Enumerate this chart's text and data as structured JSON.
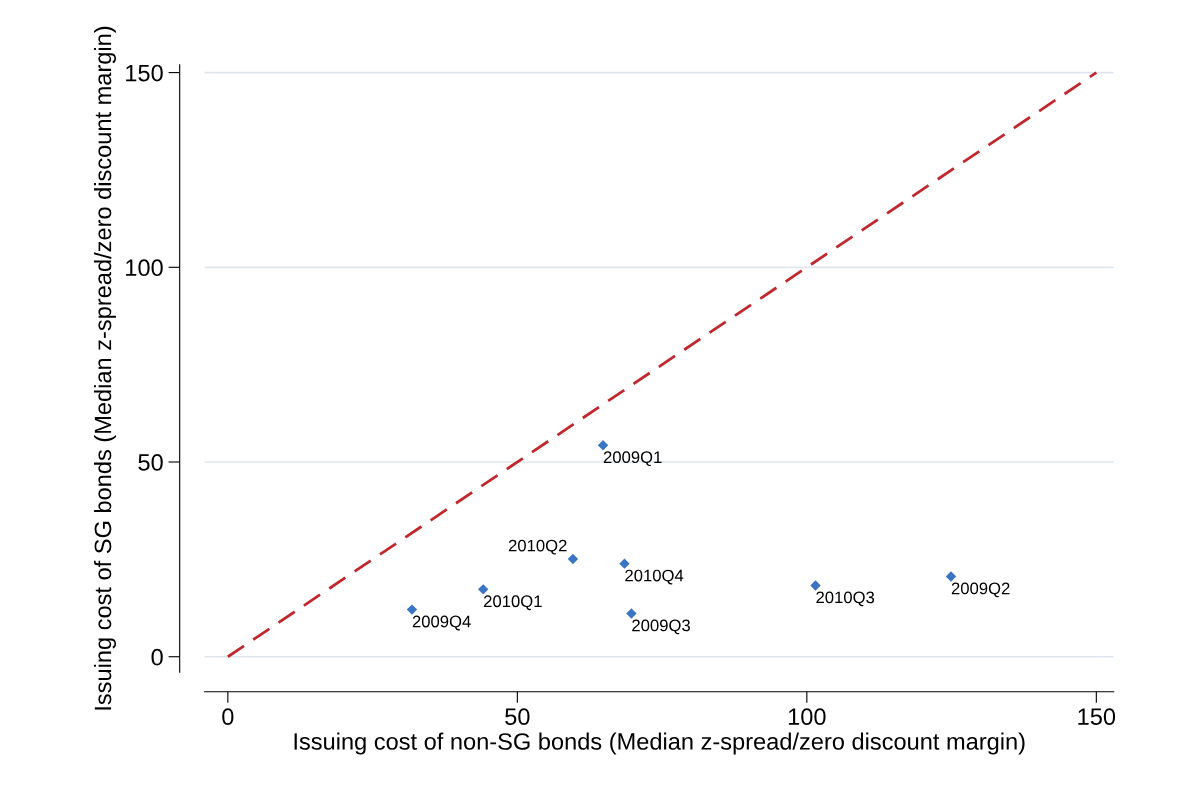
{
  "chart_data": {
    "type": "scatter",
    "xlabel": "Issuing cost of non-SG bonds (Median z-spread/zero discount margin)",
    "ylabel": "Issuing cost of SG bonds (Median z-spread/zero discount margin)",
    "xlim": [
      -4,
      153
    ],
    "ylim": [
      -4,
      152
    ],
    "xticks": [
      0,
      50,
      100,
      150
    ],
    "yticks": [
      0,
      50,
      100,
      150
    ],
    "grid": "y",
    "marker": "diamond",
    "series": [
      {
        "color": "#3a75c4",
        "x": [
          64.8,
          124.9,
          69.7,
          31.8,
          44.1,
          59.6,
          101.5,
          68.5
        ],
        "values": [
          54.3,
          20.6,
          11.1,
          12.1,
          17.3,
          25.1,
          18.3,
          23.9
        ]
      },
      {
        "type": "line",
        "color": "#c0282d",
        "line_style": "dashed",
        "marker": "none",
        "x": [
          0,
          150
        ],
        "values": [
          0,
          150
        ]
      }
    ],
    "annotations": [
      {
        "text": "2009Q1",
        "x": 64.8,
        "y": 54.3
      },
      {
        "text": "2009Q2",
        "x": 124.9,
        "y": 20.6
      },
      {
        "text": "2009Q3",
        "x": 69.7,
        "y": 11.1
      },
      {
        "text": "2009Q4",
        "x": 31.8,
        "y": 12.1
      },
      {
        "text": "2010Q1",
        "x": 44.1,
        "y": 17.3
      },
      {
        "text": "2010Q2",
        "x": 59.6,
        "y": 25.1
      },
      {
        "text": "2010Q3",
        "x": 101.5,
        "y": 18.3
      },
      {
        "text": "2010Q4",
        "x": 68.5,
        "y": 23.9
      }
    ]
  }
}
